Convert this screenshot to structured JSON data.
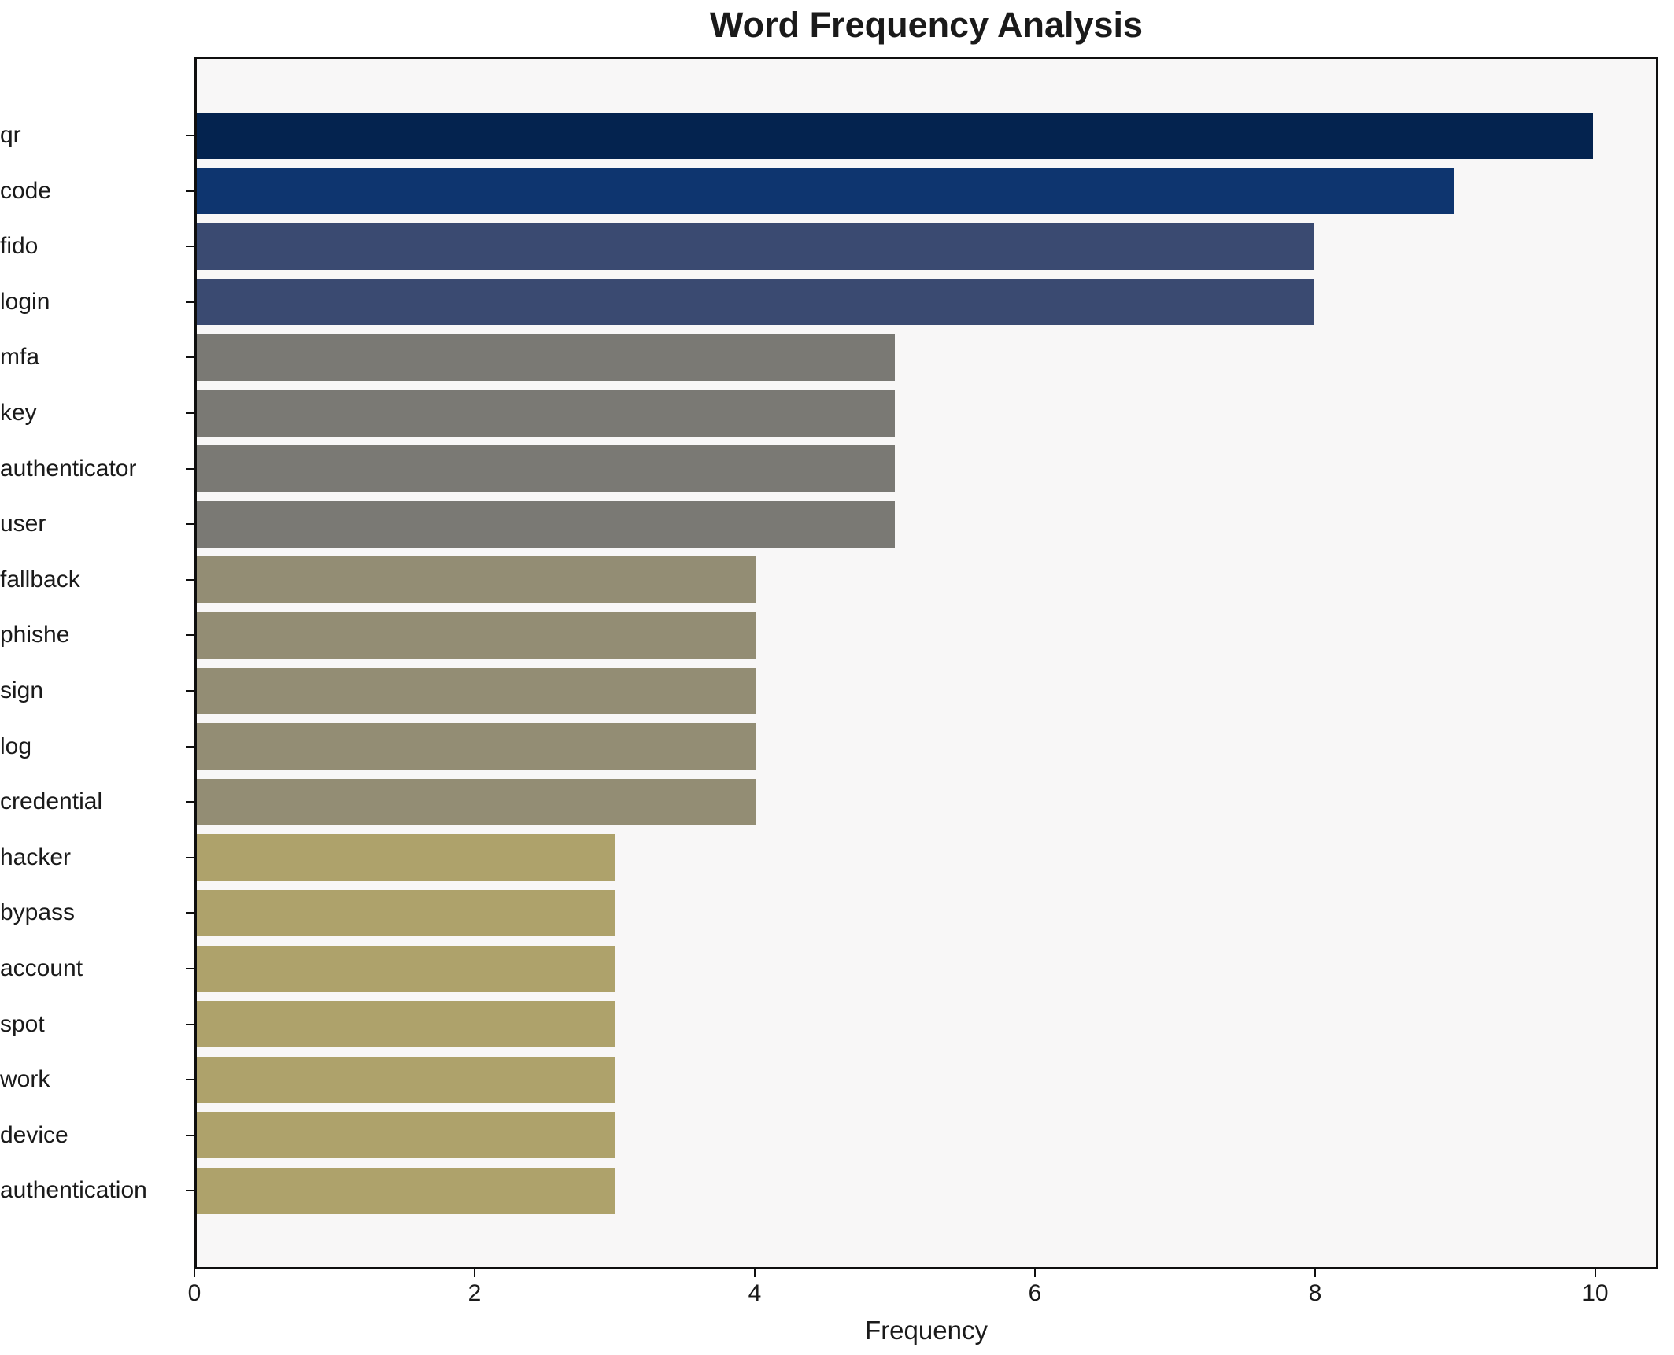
{
  "chart_data": {
    "type": "bar",
    "orientation": "horizontal",
    "title": "Word Frequency Analysis",
    "xlabel": "Frequency",
    "ylabel": "",
    "categories": [
      "qr",
      "code",
      "fido",
      "login",
      "mfa",
      "key",
      "authenticator",
      "user",
      "fallback",
      "phishe",
      "sign",
      "log",
      "credential",
      "hacker",
      "bypass",
      "account",
      "spot",
      "work",
      "device",
      "authentication"
    ],
    "values": [
      10,
      9,
      8,
      8,
      5,
      5,
      5,
      5,
      4,
      4,
      4,
      4,
      4,
      3,
      3,
      3,
      3,
      3,
      3,
      3
    ],
    "bar_colors": [
      "#04234f",
      "#0e356f",
      "#3a4a71",
      "#3a4a71",
      "#7a7974",
      "#7a7974",
      "#7a7974",
      "#7a7974",
      "#938d74",
      "#938d74",
      "#938d74",
      "#938d74",
      "#938d74",
      "#aea26b",
      "#aea26b",
      "#aea26b",
      "#aea26b",
      "#aea26b",
      "#aea26b",
      "#aea26b"
    ],
    "xlim": [
      0,
      10.45
    ],
    "xticks": [
      0,
      2,
      4,
      6,
      8,
      10
    ],
    "grid": false,
    "legend": false,
    "plot_background": "#f8f7f7",
    "figure_background": "#ffffff",
    "spine_color": "#0f0f0f"
  }
}
